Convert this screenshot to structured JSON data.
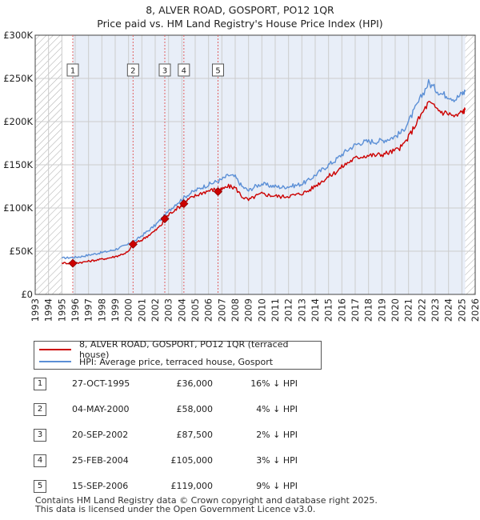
{
  "title_line1": "8, ALVER ROAD, GOSPORT, PO12 1QR",
  "title_line2": "Price paid vs. HM Land Registry's House Price Index (HPI)",
  "legend": {
    "property_label": "8, ALVER ROAD, GOSPORT, PO12 1QR (terraced house)",
    "hpi_label": "HPI: Average price, terraced house, Gosport"
  },
  "sales": [
    {
      "num": "1",
      "date": "27-OCT-1995",
      "price": "£36,000",
      "hpi": "16% ↓ HPI"
    },
    {
      "num": "2",
      "date": "04-MAY-2000",
      "price": "£58,000",
      "hpi": "4% ↓ HPI"
    },
    {
      "num": "3",
      "date": "20-SEP-2002",
      "price": "£87,500",
      "hpi": "2% ↓ HPI"
    },
    {
      "num": "4",
      "date": "25-FEB-2004",
      "price": "£105,000",
      "hpi": "3% ↓ HPI"
    },
    {
      "num": "5",
      "date": "15-SEP-2006",
      "price": "£119,000",
      "hpi": "9% ↓ HPI"
    }
  ],
  "footer_line1": "Contains HM Land Registry data © Crown copyright and database right 2025.",
  "footer_line2": "This data is licensed under the Open Government Licence v3.0.",
  "colors": {
    "property": "#cc0000",
    "hpi": "#5b8fd6",
    "grid": "#cccccc",
    "shade": "#e8eef8",
    "hatch": "#aaaaaa"
  },
  "chart_data": {
    "type": "line",
    "xlim": [
      1993,
      2026
    ],
    "ylim": [
      0,
      300000
    ],
    "yticks": [
      0,
      50000,
      100000,
      150000,
      200000,
      250000,
      300000
    ],
    "ytick_labels": [
      "£0",
      "£50K",
      "£100K",
      "£150K",
      "£200K",
      "£250K",
      "£300K"
    ],
    "xticks": [
      1993,
      1994,
      1995,
      1996,
      1997,
      1998,
      1999,
      2000,
      2001,
      2002,
      2003,
      2004,
      2005,
      2006,
      2007,
      2008,
      2009,
      2010,
      2011,
      2012,
      2013,
      2014,
      2015,
      2016,
      2017,
      2018,
      2019,
      2020,
      2021,
      2022,
      2023,
      2024,
      2025,
      2026
    ],
    "hatched_ranges": [
      [
        1993,
        1995.0
      ],
      [
        2025.25,
        2026
      ]
    ],
    "series": [
      {
        "name": "HPI: Average price, terraced house, Gosport",
        "x": [
          1995.0,
          1995.5,
          1996.0,
          1996.5,
          1997.0,
          1997.5,
          1998.0,
          1998.5,
          1999.0,
          1999.5,
          2000.0,
          2000.5,
          2001.0,
          2001.5,
          2002.0,
          2002.5,
          2003.0,
          2003.5,
          2004.0,
          2004.5,
          2005.0,
          2005.5,
          2006.0,
          2006.5,
          2007.0,
          2007.5,
          2008.0,
          2008.5,
          2009.0,
          2009.5,
          2010.0,
          2010.5,
          2011.0,
          2011.5,
          2012.0,
          2012.5,
          2013.0,
          2013.5,
          2014.0,
          2014.5,
          2015.0,
          2015.5,
          2016.0,
          2016.5,
          2017.0,
          2017.5,
          2018.0,
          2018.5,
          2019.0,
          2019.5,
          2020.0,
          2020.5,
          2021.0,
          2021.5,
          2022.0,
          2022.5,
          2023.0,
          2023.5,
          2024.0,
          2024.5,
          2025.0,
          2025.25
        ],
        "values": [
          42000,
          42500,
          43000,
          44000,
          45500,
          47000,
          48500,
          50000,
          52000,
          55000,
          58000,
          62000,
          68000,
          74000,
          80000,
          88000,
          96000,
          104000,
          110000,
          116000,
          120000,
          124000,
          127000,
          130000,
          133000,
          138000,
          136000,
          125000,
          120000,
          125000,
          128000,
          126000,
          125000,
          124000,
          125000,
          126000,
          128000,
          132000,
          138000,
          144000,
          150000,
          155000,
          162000,
          168000,
          173000,
          176000,
          177000,
          177000,
          178000,
          180000,
          183000,
          188000,
          200000,
          215000,
          230000,
          245000,
          238000,
          232000,
          230000,
          226000,
          232000,
          235000
        ]
      },
      {
        "name": "8, ALVER ROAD, GOSPORT, PO12 1QR (terraced house)",
        "x": [
          1995.0,
          1995.5,
          1995.82,
          1996.0,
          1996.5,
          1997.0,
          1997.5,
          1998.0,
          1998.5,
          1999.0,
          1999.5,
          2000.0,
          2000.34,
          2000.5,
          2001.0,
          2001.5,
          2002.0,
          2002.5,
          2002.72,
          2003.0,
          2003.5,
          2004.0,
          2004.15,
          2004.5,
          2005.0,
          2005.5,
          2006.0,
          2006.5,
          2006.71,
          2007.0,
          2007.5,
          2008.0,
          2008.5,
          2009.0,
          2009.5,
          2010.0,
          2010.5,
          2011.0,
          2011.5,
          2012.0,
          2012.5,
          2013.0,
          2013.5,
          2014.0,
          2014.5,
          2015.0,
          2015.5,
          2016.0,
          2016.5,
          2017.0,
          2017.5,
          2018.0,
          2018.5,
          2019.0,
          2019.5,
          2020.0,
          2020.5,
          2021.0,
          2021.5,
          2022.0,
          2022.5,
          2023.0,
          2023.5,
          2024.0,
          2024.5,
          2025.0,
          2025.25
        ],
        "values": [
          36500,
          36200,
          36000,
          36500,
          37200,
          38300,
          39500,
          40800,
          42100,
          43800,
          46300,
          49500,
          58000,
          59000,
          63000,
          68500,
          73700,
          81000,
          87500,
          92000,
          98500,
          103000,
          105000,
          110000,
          114000,
          117500,
          120000,
          121500,
          119000,
          121500,
          125000,
          123500,
          113500,
          109000,
          113500,
          116500,
          115000,
          114000,
          113000,
          114000,
          115000,
          117000,
          120000,
          125500,
          131000,
          136500,
          141000,
          147500,
          153000,
          157500,
          160000,
          161000,
          161000,
          162000,
          164000,
          166500,
          171000,
          182000,
          196000,
          209000,
          222000,
          216500,
          211000,
          209500,
          205500,
          211000,
          213500
        ]
      }
    ],
    "sales": [
      {
        "label": "1",
        "x": 1995.82,
        "y": 36000
      },
      {
        "label": "2",
        "x": 2000.34,
        "y": 58000
      },
      {
        "label": "3",
        "x": 2002.72,
        "y": 87500
      },
      {
        "label": "4",
        "x": 2004.15,
        "y": 105000
      },
      {
        "label": "5",
        "x": 2006.71,
        "y": 119000
      }
    ]
  }
}
